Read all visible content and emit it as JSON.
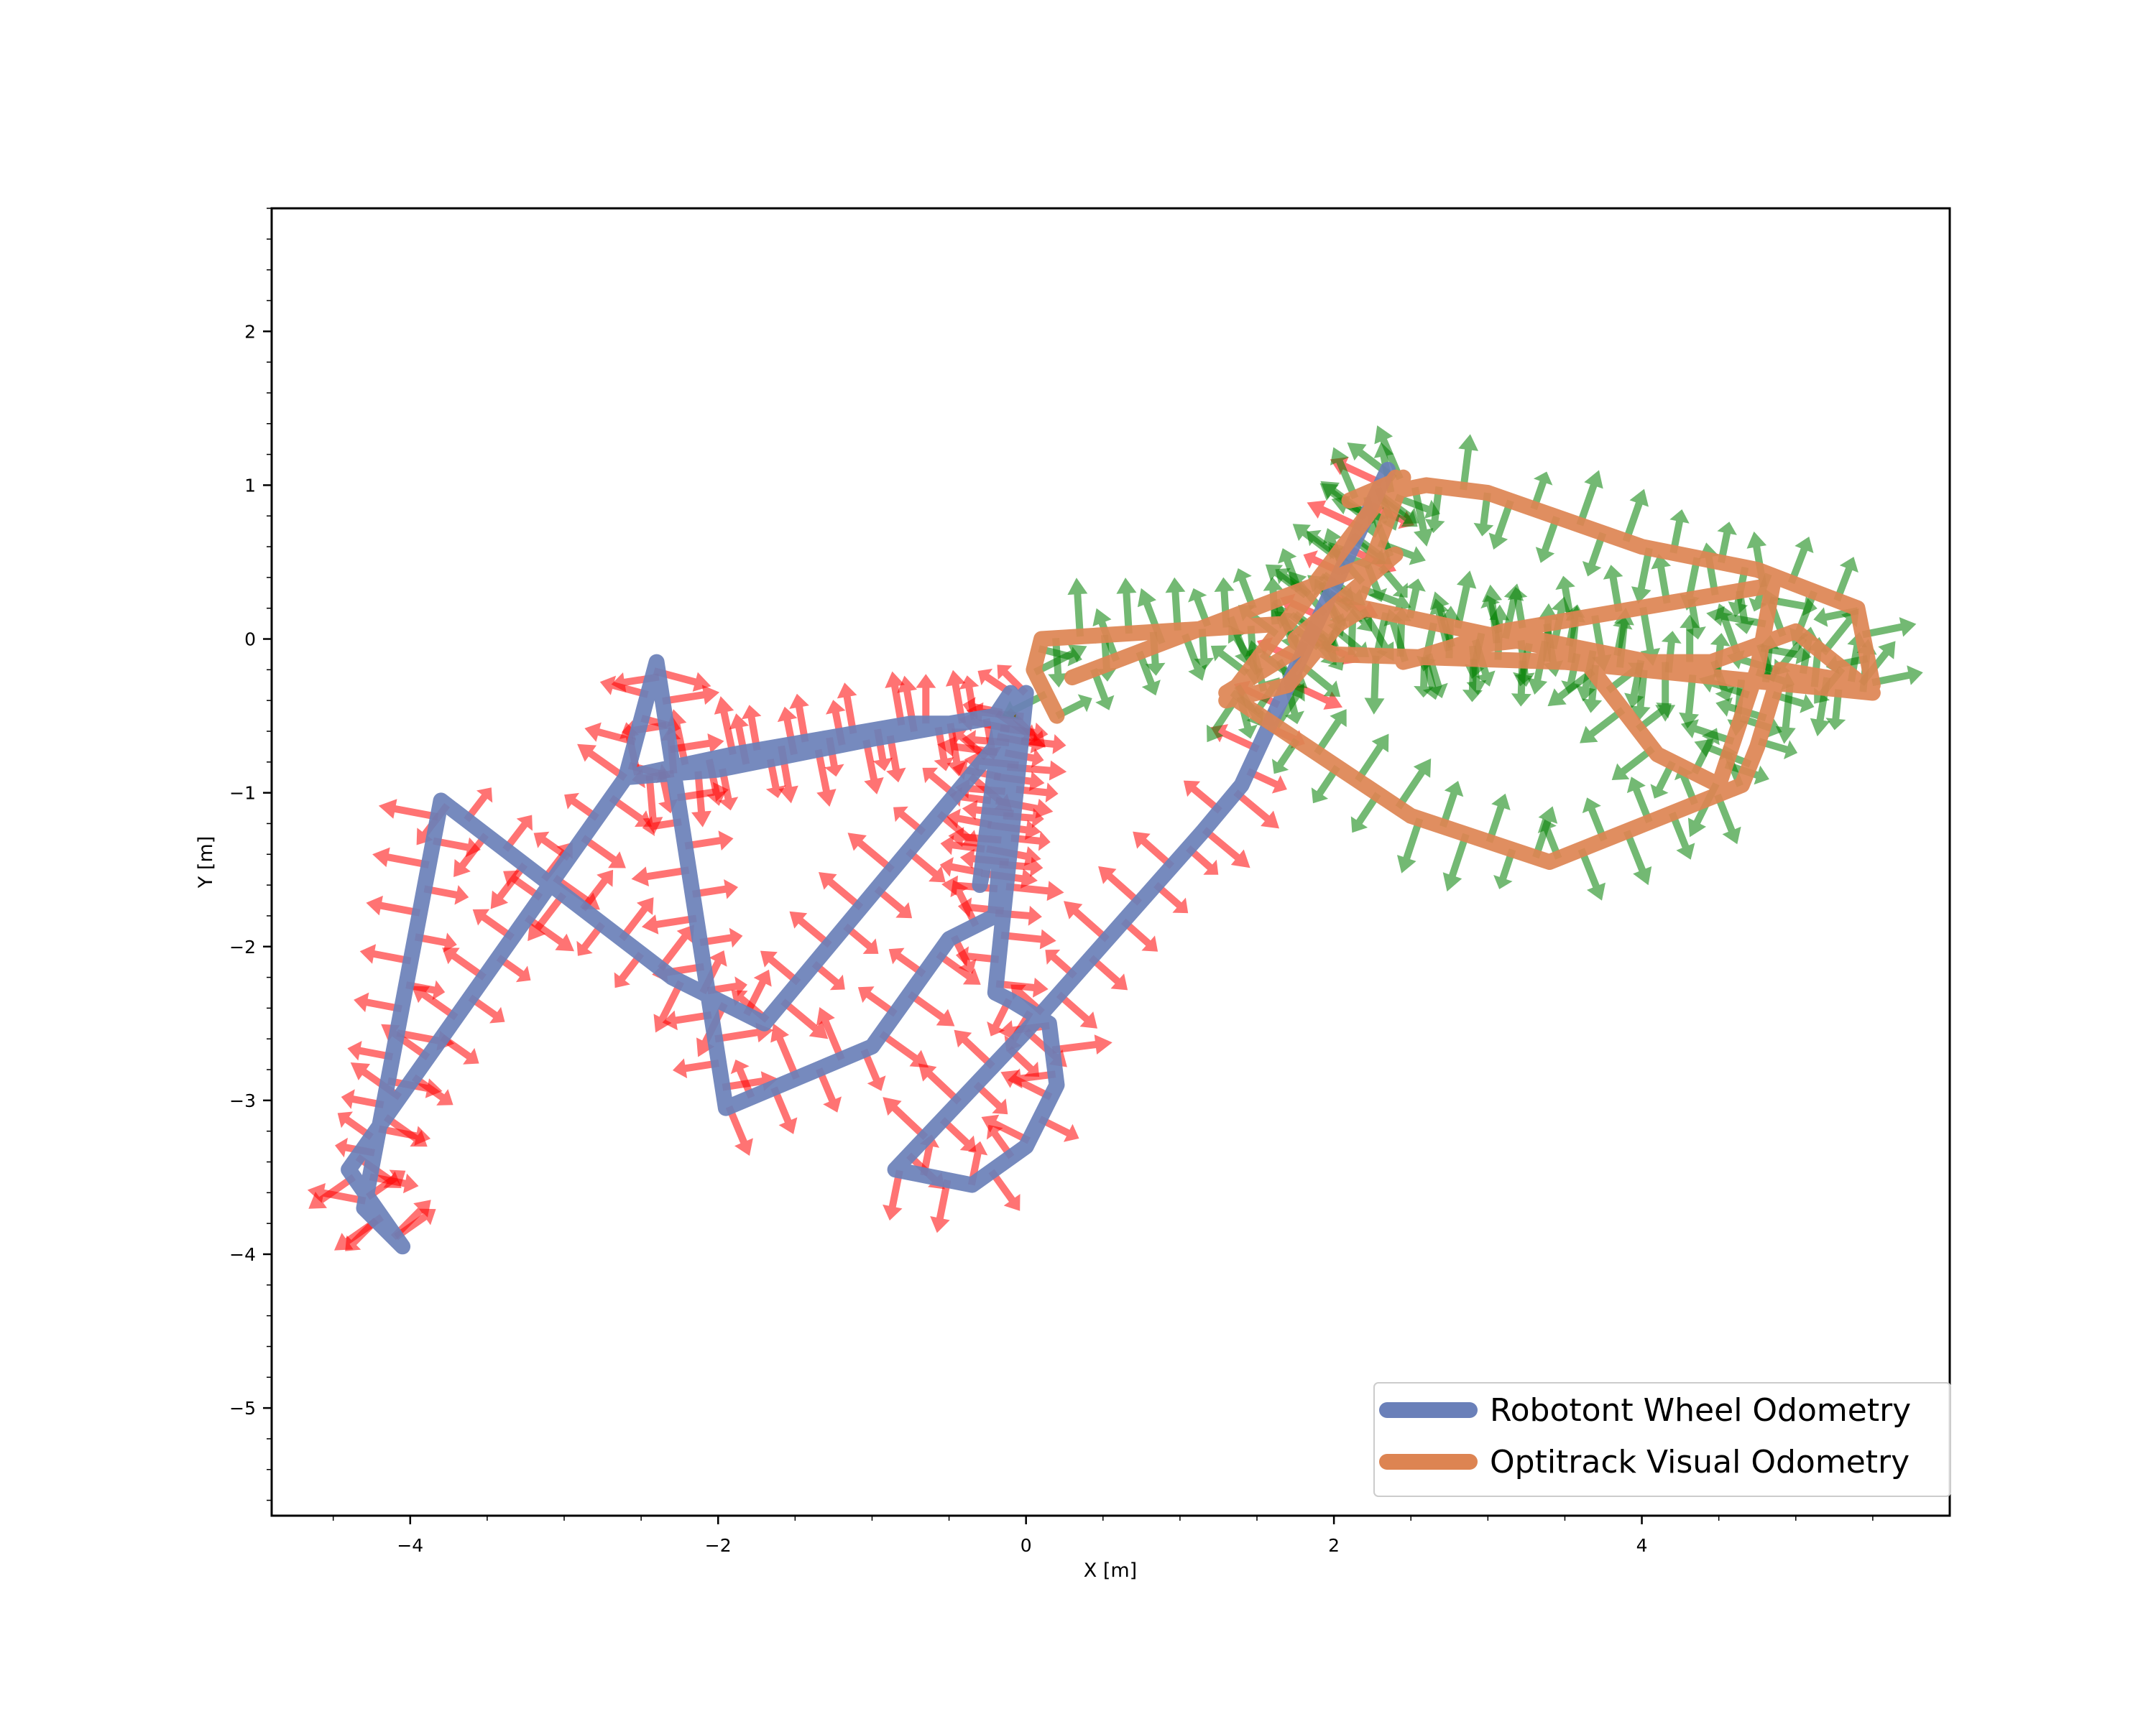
{
  "chart_data": {
    "type": "line",
    "title": "",
    "xlabel": "X [m]",
    "ylabel": "Y [m]",
    "xlim": [
      -4.9,
      6.0
    ],
    "ylim": [
      -5.7,
      2.8
    ],
    "xticks": [
      -4,
      -2,
      0,
      2,
      4
    ],
    "yticks": [
      -5,
      -4,
      -3,
      -2,
      -1,
      0,
      1,
      2
    ],
    "grid": false,
    "legend_position": "lower-right",
    "series": [
      {
        "name": "Robotont Wheel Odometry",
        "color": "#6a80b9",
        "arrow_color": "#ff0000",
        "x": [
          -0.1,
          -0.2,
          -0.5,
          -0.75,
          -1.9,
          -2.6,
          -2.4,
          -1.95,
          -1.0,
          -0.5,
          -0.2,
          -0.1,
          -0.3,
          -0.15,
          -0.2,
          -1.7,
          -2.3,
          -3.8,
          -4.3,
          -4.05,
          -4.4,
          -2.6,
          -2.0,
          -1.0,
          -0.15,
          0.0,
          -0.2,
          -0.1,
          0.15,
          0.2,
          0.0,
          -0.35,
          -0.85,
          0.0,
          1.15,
          1.4,
          2.35
        ],
        "y": [
          -0.35,
          -0.5,
          -0.55,
          -0.55,
          -0.75,
          -0.9,
          -0.15,
          -3.05,
          -2.65,
          -1.95,
          -1.8,
          -0.55,
          -1.6,
          -0.45,
          -0.7,
          -2.5,
          -2.2,
          -1.05,
          -3.7,
          -3.95,
          -3.45,
          -0.9,
          -0.85,
          -0.65,
          -0.5,
          -0.35,
          -2.3,
          -2.35,
          -2.5,
          -2.9,
          -3.3,
          -3.55,
          -3.45,
          -2.55,
          -1.25,
          -0.95,
          1.1
        ]
      },
      {
        "name": "Optitrack Visual Odometry",
        "color": "#dd8452",
        "arrow_color": "#008000",
        "x": [
          0.2,
          0.05,
          0.1,
          1.7,
          2.4,
          1.3,
          1.7,
          2.15,
          2.45,
          2.1,
          2.6,
          3.0,
          4.0,
          4.75,
          5.4,
          5.5,
          4.9,
          4.75,
          4.65,
          4.15,
          3.4,
          2.5,
          1.6,
          1.3,
          2.2,
          3.6,
          4.1,
          4.5,
          4.75,
          4.85,
          3.1,
          2.45,
          2.85,
          3.3,
          4.05,
          4.45,
          5.0,
          5.5,
          3.5,
          2.0,
          1.75,
          2.4,
          0.3
        ],
        "y": [
          -0.5,
          -0.2,
          0.0,
          0.1,
          1.05,
          -0.4,
          -0.3,
          0.25,
          1.05,
          0.9,
          1.0,
          0.95,
          0.6,
          0.45,
          0.2,
          -0.3,
          -0.2,
          -0.7,
          -0.95,
          -1.15,
          -1.45,
          -1.15,
          -0.55,
          -0.35,
          0.2,
          -0.1,
          -0.75,
          -0.95,
          -0.2,
          0.35,
          0.05,
          -0.15,
          -0.05,
          0.0,
          -0.15,
          -0.15,
          0.05,
          -0.35,
          -0.15,
          -0.1,
          0.0,
          0.55,
          -0.25
        ]
      }
    ]
  }
}
